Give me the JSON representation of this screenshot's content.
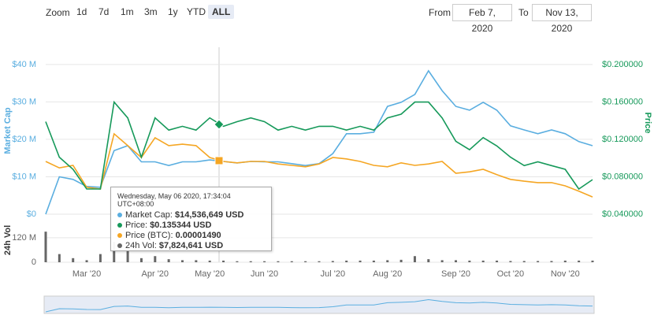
{
  "toolbar": {
    "zoom_label": "Zoom",
    "buttons": [
      "1d",
      "7d",
      "1m",
      "3m",
      "1y",
      "YTD",
      "ALL"
    ],
    "selected": "ALL",
    "from_label": "From",
    "from": "Feb 7, 2020",
    "to_label": "To",
    "to": "Nov 13, 2020"
  },
  "chart_data": [
    {
      "type": "line",
      "ylabel": "Market Cap",
      "y2label": "Price",
      "ylim": [
        0,
        44.6
      ],
      "yticks": [
        {
          "value": 0,
          "label": "$0"
        },
        {
          "value": 10,
          "label": "$10 M"
        },
        {
          "value": 20,
          "label": "$20 M"
        },
        {
          "value": 30,
          "label": "$30 M"
        },
        {
          "value": 40,
          "label": "$40 M"
        }
      ],
      "y2lim": [
        0.04,
        0.2186
      ],
      "y2ticks": [
        {
          "value": 0.04,
          "label": "$0.040000"
        },
        {
          "value": 0.08,
          "label": "$0.080000"
        },
        {
          "value": 0.12,
          "label": "$0.120000"
        },
        {
          "value": 0.16,
          "label": "$0.160000"
        },
        {
          "value": 0.2,
          "label": "$0.200000"
        }
      ],
      "y3lim": [
        0,
        4.65e-05
      ],
      "grid": true,
      "series": [
        {
          "color": "#5aaee0",
          "axis": "y",
          "values": [
            0,
            10,
            9.3,
            7.4,
            7.2,
            17,
            18.3,
            14,
            14,
            13,
            14,
            14,
            14.5,
            14.1,
            13.7,
            14.1,
            14,
            14,
            13.5,
            13,
            13.5,
            16.2,
            21.5,
            21.5,
            21.9,
            28.8,
            29.9,
            32,
            38.3,
            33,
            28.8,
            27.8,
            29.9,
            27.8,
            23.6,
            22.5,
            21.5,
            22.5,
            21.5,
            19.4,
            18.3
          ]
        },
        {
          "color": "#f5a623",
          "axis": "y3",
          "values": [
            1.47e-05,
            1.29e-05,
            1.36e-05,
            7.5e-06,
            7e-06,
            2.24e-05,
            1.91e-05,
            1.58e-05,
            2.13e-05,
            1.91e-05,
            1.95e-05,
            1.91e-05,
            1.58e-05,
            1.47e-05,
            1.43e-05,
            1.47e-05,
            1.47e-05,
            1.4e-05,
            1.36e-05,
            1.32e-05,
            1.4e-05,
            1.58e-05,
            1.54e-05,
            1.47e-05,
            1.36e-05,
            1.32e-05,
            1.43e-05,
            1.36e-05,
            1.4e-05,
            1.47e-05,
            1.14e-05,
            1.18e-05,
            1.25e-05,
            1.1e-05,
            9.7e-06,
            9.2e-06,
            8.8e-06,
            8.8e-06,
            7.9e-06,
            6.4e-06,
            4.8e-06
          ]
        },
        {
          "color": "#16995a",
          "axis": "y2",
          "values": [
            0.139,
            0.101,
            0.088,
            0.067,
            0.067,
            0.16,
            0.143,
            0.101,
            0.143,
            0.13,
            0.134,
            0.13,
            0.143,
            0.134,
            0.139,
            0.143,
            0.139,
            0.13,
            0.134,
            0.13,
            0.134,
            0.134,
            0.13,
            0.134,
            0.13,
            0.143,
            0.147,
            0.16,
            0.16,
            0.143,
            0.118,
            0.109,
            0.122,
            0.113,
            0.101,
            0.092,
            0.096,
            0.092,
            0.088,
            0.067,
            0.077
          ]
        }
      ]
    },
    {
      "type": "bar",
      "ylabel": "24h Vol",
      "color": "#666666",
      "ylim": [
        0,
        197
      ],
      "yticks": [
        0,
        {
          "value": 120,
          "label": "120 M"
        }
      ],
      "categories": [
        null,
        null,
        null,
        "Mar '20",
        null,
        null,
        null,
        null,
        "Apr '20",
        null,
        null,
        null,
        "May '20",
        null,
        null,
        null,
        "Jun '20",
        null,
        null,
        null,
        null,
        "Jul '20",
        null,
        null,
        null,
        "Aug '20",
        null,
        null,
        null,
        null,
        "Sep '20",
        null,
        null,
        null,
        "Oct '20",
        null,
        null,
        null,
        "Nov '20",
        null,
        null
      ],
      "values": [
        150,
        40,
        20,
        10,
        40,
        100,
        60,
        20,
        30,
        15,
        10,
        10,
        8,
        8,
        5,
        5,
        5,
        5,
        5,
        5,
        5,
        6,
        8,
        8,
        8,
        10,
        12,
        30,
        15,
        10,
        10,
        8,
        8,
        8,
        6,
        6,
        6,
        6,
        8,
        8,
        8
      ]
    }
  ],
  "tooltip": {
    "title": "Wednesday, May 06 2020, 17:34:04 UTC+08:00",
    "rows": [
      {
        "label": "Market Cap:",
        "value": "$14,536,649 USD"
      },
      {
        "label": "Price:",
        "value": "$0.135344 USD"
      },
      {
        "label": "Price (BTC):",
        "value": "0.00001490"
      },
      {
        "label": "24h Vol:",
        "value": "$7,824,641 USD"
      }
    ]
  }
}
